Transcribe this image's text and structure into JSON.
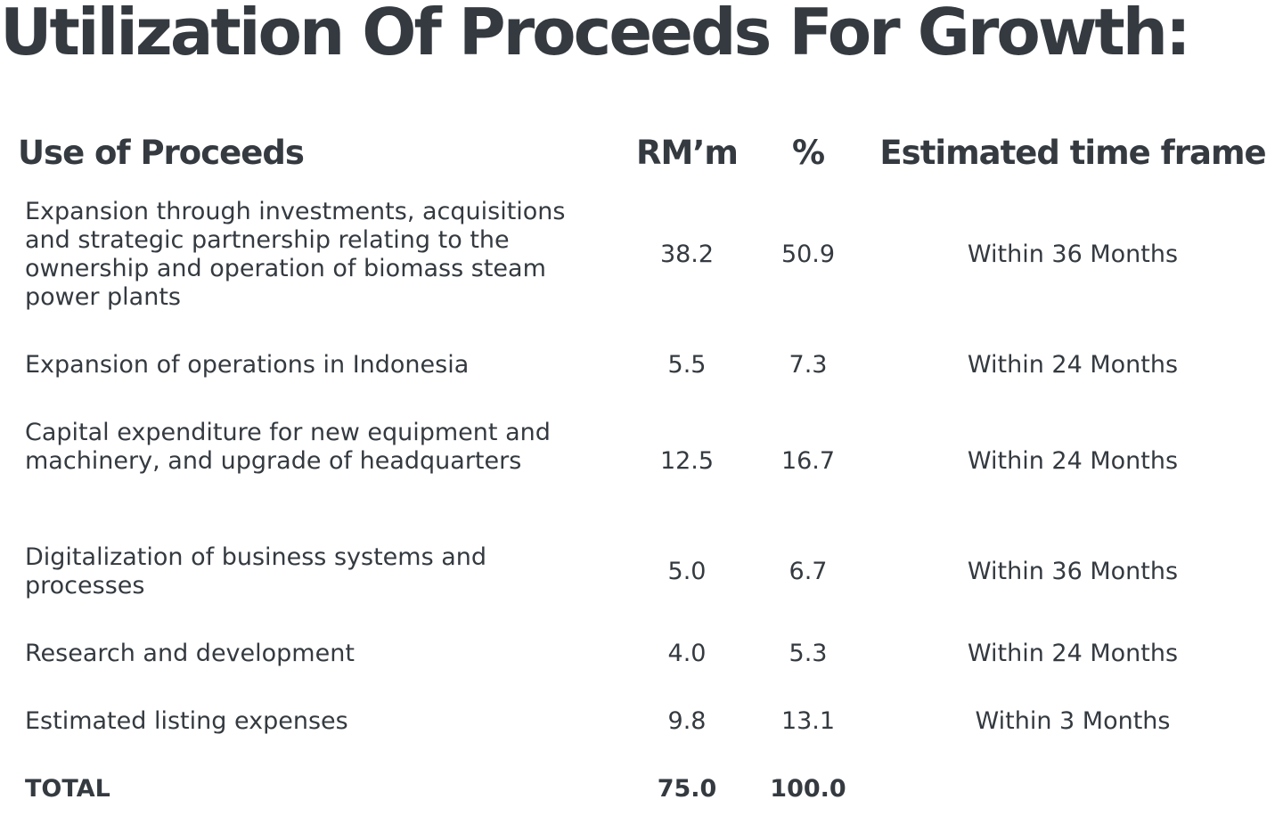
{
  "title": "Utilization Of Proceeds For Growth:",
  "table": {
    "headers": {
      "use": "Use of Proceeds",
      "rm": "RM’m",
      "pct": "%",
      "time": "Estimated time frame"
    },
    "rows": [
      {
        "use": "Expansion through investments, acquisitions and strategic partnership relating to the ownership and operation of biomass steam power plants",
        "rm": "38.2",
        "pct": "50.9",
        "time": "Within 36 Months"
      },
      {
        "use": "Expansion of operations in Indonesia",
        "rm": "5.5",
        "pct": "7.3",
        "time": "Within 24 Months"
      },
      {
        "use": "Capital expenditure for new equipment and machinery, and upgrade of headquarters",
        "rm": "12.5",
        "pct": "16.7",
        "time": "Within 24 Months"
      },
      {
        "use": "Digitalization of business systems and processes",
        "rm": "5.0",
        "pct": "6.7",
        "time": "Within 36 Months"
      },
      {
        "use": "Research and development",
        "rm": "4.0",
        "pct": "5.3",
        "time": "Within 24 Months"
      },
      {
        "use": "Estimated listing expenses",
        "rm": "9.8",
        "pct": "13.1",
        "time": "Within 3 Months"
      }
    ],
    "total": {
      "label": "TOTAL",
      "rm": "75.0",
      "pct": "100.0"
    }
  }
}
